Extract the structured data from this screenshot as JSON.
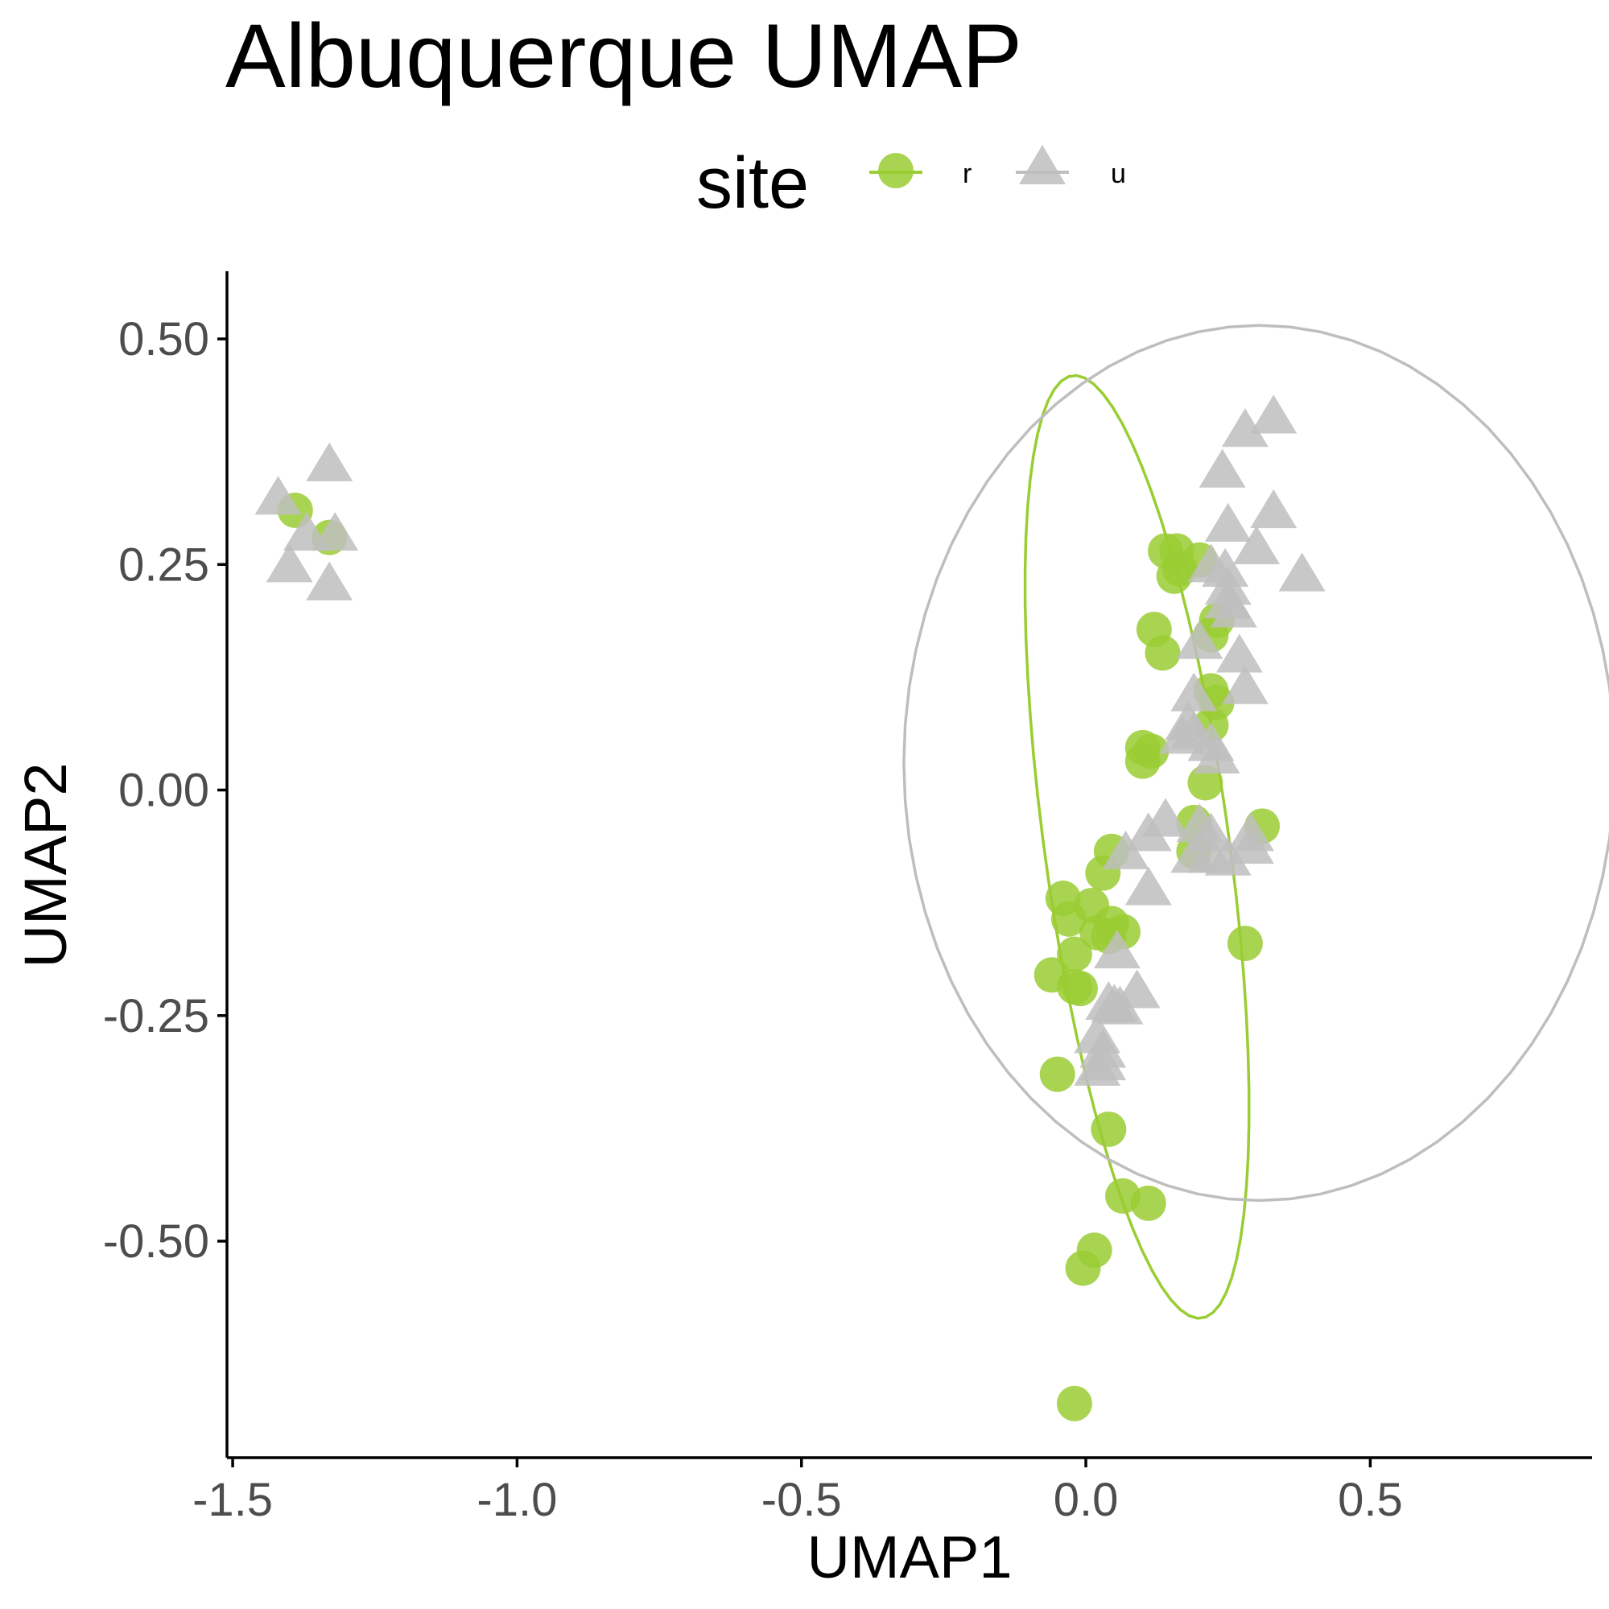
{
  "chart_data": {
    "type": "scatter",
    "title": "Albuquerque UMAP",
    "xlabel": "UMAP1",
    "ylabel": "UMAP2",
    "xlim": [
      -1.51,
      0.89
    ],
    "ylim": [
      -0.74,
      0.575
    ],
    "x_ticks": [
      {
        "value": -1.5,
        "label": "-1.5"
      },
      {
        "value": -1.0,
        "label": "-1.0"
      },
      {
        "value": -0.5,
        "label": "-0.5"
      },
      {
        "value": 0.0,
        "label": "0.0"
      },
      {
        "value": 0.5,
        "label": "0.5"
      }
    ],
    "y_ticks": [
      {
        "value": 0.5,
        "label": "0.50"
      },
      {
        "value": 0.25,
        "label": "0.25"
      },
      {
        "value": 0.0,
        "label": "0.00"
      },
      {
        "value": -0.25,
        "label": "-0.25"
      },
      {
        "value": -0.5,
        "label": "-0.50"
      }
    ],
    "grid": false,
    "legend": {
      "title": "site",
      "placement": "top"
    },
    "series": [
      {
        "name": "r",
        "shape": "circle",
        "color": "#9ACD32",
        "points": [
          [
            -1.39,
            0.31
          ],
          [
            -1.33,
            0.28
          ],
          [
            0.14,
            0.265
          ],
          [
            0.16,
            0.265
          ],
          [
            0.2,
            0.255
          ],
          [
            0.165,
            0.245
          ],
          [
            0.155,
            0.237
          ],
          [
            0.23,
            0.188
          ],
          [
            0.12,
            0.178
          ],
          [
            0.22,
            0.172
          ],
          [
            0.135,
            0.152
          ],
          [
            0.22,
            0.11
          ],
          [
            0.23,
            0.097
          ],
          [
            0.22,
            0.072
          ],
          [
            0.1,
            0.047
          ],
          [
            0.115,
            0.043
          ],
          [
            0.1,
            0.032
          ],
          [
            0.21,
            0.008
          ],
          [
            0.19,
            -0.036
          ],
          [
            0.31,
            -0.04
          ],
          [
            0.19,
            -0.068
          ],
          [
            0.045,
            -0.068
          ],
          [
            0.03,
            -0.092
          ],
          [
            -0.04,
            -0.12
          ],
          [
            0.01,
            -0.128
          ],
          [
            -0.03,
            -0.143
          ],
          [
            0.045,
            -0.148
          ],
          [
            0.065,
            -0.157
          ],
          [
            0.02,
            -0.158
          ],
          [
            0.04,
            -0.162
          ],
          [
            0.28,
            -0.17
          ],
          [
            -0.02,
            -0.182
          ],
          [
            -0.06,
            -0.205
          ],
          [
            -0.02,
            -0.218
          ],
          [
            -0.01,
            -0.22
          ],
          [
            -0.05,
            -0.315
          ],
          [
            0.04,
            -0.376
          ],
          [
            0.065,
            -0.45
          ],
          [
            0.11,
            -0.458
          ],
          [
            0.015,
            -0.51
          ],
          [
            -0.005,
            -0.53
          ],
          [
            -0.02,
            -0.68
          ]
        ]
      },
      {
        "name": "u",
        "shape": "triangle",
        "color": "#BEBEBE",
        "points": [
          [
            -1.42,
            0.325
          ],
          [
            -1.33,
            0.362
          ],
          [
            -1.37,
            0.285
          ],
          [
            -1.32,
            0.285
          ],
          [
            -1.4,
            0.25
          ],
          [
            -1.33,
            0.23
          ],
          [
            0.33,
            0.415
          ],
          [
            0.28,
            0.4
          ],
          [
            0.24,
            0.355
          ],
          [
            0.33,
            0.31
          ],
          [
            0.25,
            0.295
          ],
          [
            0.3,
            0.27
          ],
          [
            0.38,
            0.24
          ],
          [
            0.22,
            0.25
          ],
          [
            0.245,
            0.245
          ],
          [
            0.25,
            0.225
          ],
          [
            0.25,
            0.21
          ],
          [
            0.26,
            0.2
          ],
          [
            0.2,
            0.165
          ],
          [
            0.27,
            0.15
          ],
          [
            0.28,
            0.115
          ],
          [
            0.19,
            0.107
          ],
          [
            0.18,
            0.075
          ],
          [
            0.19,
            0.065
          ],
          [
            0.17,
            0.06
          ],
          [
            0.22,
            0.052
          ],
          [
            0.23,
            0.038
          ],
          [
            0.14,
            -0.032
          ],
          [
            0.2,
            -0.038
          ],
          [
            0.11,
            -0.048
          ],
          [
            0.22,
            -0.048
          ],
          [
            0.29,
            -0.048
          ],
          [
            0.07,
            -0.068
          ],
          [
            0.19,
            -0.072
          ],
          [
            0.22,
            -0.072
          ],
          [
            0.25,
            -0.075
          ],
          [
            0.29,
            -0.062
          ],
          [
            0.11,
            -0.108
          ],
          [
            0.055,
            -0.178
          ],
          [
            0.09,
            -0.222
          ],
          [
            0.04,
            -0.235
          ],
          [
            0.05,
            -0.238
          ],
          [
            0.06,
            -0.24
          ],
          [
            0.02,
            -0.272
          ],
          [
            0.03,
            -0.288
          ],
          [
            0.03,
            -0.302
          ],
          [
            0.02,
            -0.308
          ]
        ]
      }
    ],
    "ellipses": [
      {
        "series": "r",
        "color": "#9ACD32",
        "cx": 0.09,
        "cy": -0.063,
        "rx": 0.16,
        "ry": 0.535,
        "tilt_deg": 13
      },
      {
        "series": "u",
        "color": "#BEBEBE",
        "cx": 0.305,
        "cy": 0.03,
        "rx": 0.625,
        "ry": 0.485,
        "tilt_deg": 0
      }
    ]
  }
}
